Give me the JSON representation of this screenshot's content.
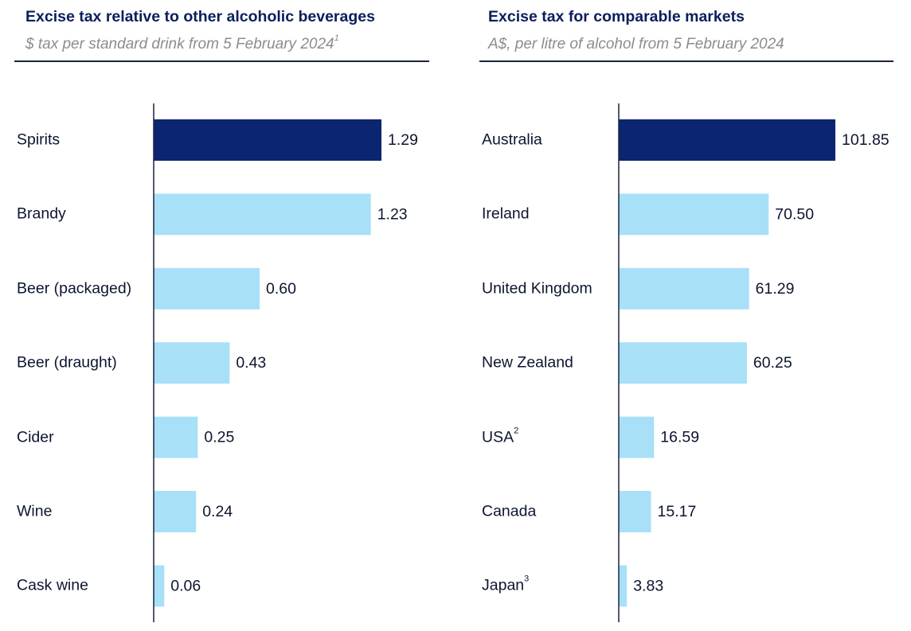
{
  "colors": {
    "highlight": "#0c2570",
    "bar": "#a8e0f8",
    "title": "#0b1f5c",
    "subtitle": "#8c8c8c",
    "text": "#0d1530",
    "axis": "#1a2440"
  },
  "chart_data": [
    {
      "type": "bar",
      "orientation": "horizontal",
      "title": "Excise tax relative to other alcoholic beverages",
      "subtitle": "$ tax per standard drink from 5 February 2024",
      "subtitle_footnote": "1",
      "xlabel": "",
      "ylabel": "",
      "xlim": [
        0,
        1.29
      ],
      "grid": false,
      "legend": "none",
      "categories": [
        "Spirits",
        "Brandy",
        "Beer (packaged)",
        "Beer (draught)",
        "Cider",
        "Wine",
        "Cask wine"
      ],
      "footnotes": [
        "",
        "",
        "",
        "",
        "",
        "",
        ""
      ],
      "values": [
        1.29,
        1.23,
        0.6,
        0.43,
        0.25,
        0.24,
        0.06
      ],
      "value_labels": [
        "1.29",
        "1.23",
        "0.60",
        "0.43",
        "0.25",
        "0.24",
        "0.06"
      ],
      "highlight_index": 0
    },
    {
      "type": "bar",
      "orientation": "horizontal",
      "title": "Excise tax for comparable markets",
      "subtitle": "A$, per litre of alcohol from 5 February 2024",
      "subtitle_footnote": "",
      "xlabel": "",
      "ylabel": "",
      "xlim": [
        0,
        101.85
      ],
      "grid": false,
      "legend": "none",
      "categories": [
        "Australia",
        "Ireland",
        "United Kingdom",
        "New Zealand",
        "USA",
        "Canada",
        "Japan"
      ],
      "footnotes": [
        "",
        "",
        "",
        "",
        "2",
        "",
        "3"
      ],
      "values": [
        101.85,
        70.5,
        61.29,
        60.25,
        16.59,
        15.17,
        3.83
      ],
      "value_labels": [
        "101.85",
        "70.50",
        "61.29",
        "60.25",
        "16.59",
        "15.17",
        "3.83"
      ],
      "highlight_index": 0
    }
  ]
}
